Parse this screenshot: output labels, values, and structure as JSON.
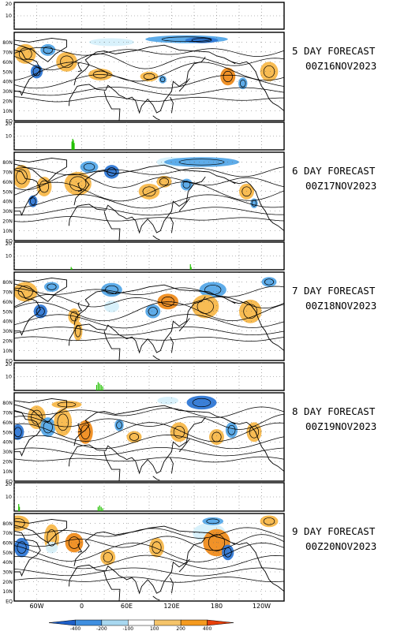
{
  "chart_data": {
    "type": "contour map with bar histograms",
    "panels": [
      {
        "label_line1": "5 DAY FORECAST",
        "label_line2": "00Z16NOV2023",
        "histogram_max": 20,
        "histogram_mid": 10,
        "histogram_bars": []
      },
      {
        "label_line1": "6 DAY FORECAST",
        "label_line2": "00Z17NOV2023",
        "histogram_max": 20,
        "histogram_mid": 10,
        "histogram_bars": [
          {
            "lon": -13,
            "value": 6
          },
          {
            "lon": -12,
            "value": 8
          },
          {
            "lon": -11,
            "value": 7
          },
          {
            "lon": -10,
            "value": 5
          }
        ]
      },
      {
        "label_line1": "7 DAY FORECAST",
        "label_line2": "00Z18NOV2023",
        "histogram_max": 20,
        "histogram_mid": 10,
        "histogram_bars": [
          {
            "lon": -14,
            "value": 2
          },
          {
            "lon": -13,
            "value": 1
          },
          {
            "lon": 145,
            "value": 4
          },
          {
            "lon": 146,
            "value": 2
          }
        ]
      },
      {
        "label_line1": "8 DAY FORECAST",
        "label_line2": "00Z19NOV2023",
        "histogram_max": 20,
        "histogram_mid": 10,
        "histogram_bars": [
          {
            "lon": 20,
            "value": 4
          },
          {
            "lon": 22,
            "value": 6
          },
          {
            "lon": 24,
            "value": 5
          },
          {
            "lon": 26,
            "value": 4
          },
          {
            "lon": 28,
            "value": 3
          }
        ]
      },
      {
        "label_line1": "9 DAY FORECAST",
        "label_line2": "00Z20NOV2023",
        "histogram_max": 20,
        "histogram_mid": 10,
        "histogram_bars": [
          {
            "lon": -84,
            "value": 5
          },
          {
            "lon": -83,
            "value": 3
          },
          {
            "lon": 22,
            "value": 3
          },
          {
            "lon": 24,
            "value": 4
          },
          {
            "lon": 26,
            "value": 3
          },
          {
            "lon": 28,
            "value": 2
          }
        ]
      }
    ],
    "lat_ticks": [
      "80N",
      "70N",
      "60N",
      "50N",
      "40N",
      "30N",
      "20N",
      "10N",
      "EQ"
    ],
    "lon_ticks": [
      "60W",
      "0",
      "60E",
      "120E",
      "180",
      "120W"
    ],
    "lon_tick_values": [
      -60,
      0,
      60,
      120,
      180,
      240
    ],
    "lon_range": [
      -90,
      270
    ],
    "lat_range": [
      0,
      90
    ],
    "colorbar_labels": [
      "-400",
      "-200",
      "-100",
      "100",
      "200",
      "400"
    ],
    "colorbar_colors": [
      "#1e5fc8",
      "#3f8fe0",
      "#a8d8f0",
      "#ffffff",
      "#f5c46a",
      "#f59a1e",
      "#e8400a"
    ],
    "colors": {
      "negative": "#55a8e8",
      "negative_strong": "#2f78d6",
      "light_negative": "#d6f0fb",
      "positive": "#f8b84a",
      "positive_strong": "#f08c1c",
      "histogram": "#22c000"
    }
  }
}
